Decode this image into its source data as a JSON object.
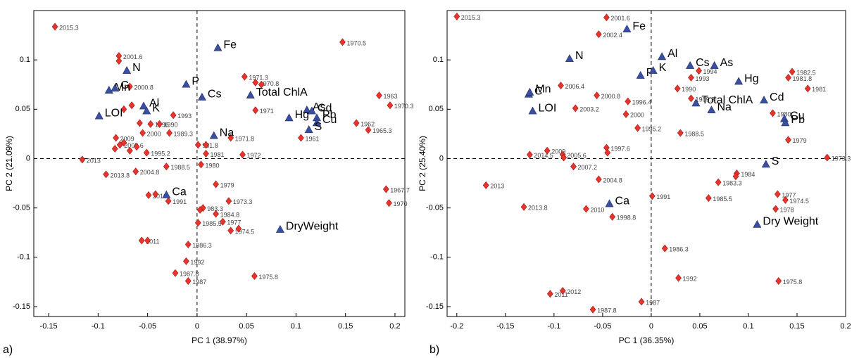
{
  "chart_data": [
    {
      "type": "scatter",
      "panel": "a)",
      "x_label": "PC 1 (38.97%)",
      "y_label": "PC 2 (21.09%)",
      "xlim": [
        -0.165,
        0.21
      ],
      "ylim": [
        -0.16,
        0.15
      ],
      "xticks": [
        -0.15,
        -0.1,
        -0.05,
        0,
        0.05,
        0.1,
        0.15,
        0.2
      ],
      "yticks": [
        -0.15,
        -0.1,
        -0.05,
        0,
        0.05,
        0.1
      ],
      "series": [
        {
          "marker": "diamond",
          "color": "#e8342c",
          "x": [
            -0.1436,
            -0.079,
            -0.079,
            -0.068,
            -0.074,
            -0.066,
            -0.058,
            -0.047,
            -0.038,
            -0.055,
            -0.028,
            -0.024,
            -0.082,
            -0.078,
            -0.074,
            -0.083,
            -0.061,
            -0.068,
            -0.051,
            -0.116,
            -0.092,
            -0.062,
            -0.031,
            -0.049,
            -0.042,
            -0.029,
            -0.056,
            -0.05,
            -0.009,
            -0.011,
            -0.022,
            -0.009,
            0.001,
            0.009,
            0.009,
            0.004,
            0.034,
            0.046,
            0.048,
            0.059,
            0.065,
            0.059,
            0.019,
            0.032,
            0.006,
            0.003,
            0.019,
            0.026,
            0.001,
            0.034,
            0.042,
            0.058,
            0.147,
            0.184,
            0.195,
            0.161,
            0.173,
            0.105,
            0.191,
            0.194
          ],
          "values": [
            0.1336,
            0.104,
            0.099,
            0.073,
            0.05,
            0.054,
            0.036,
            0.035,
            0.035,
            0.026,
            0.026,
            0.044,
            0.021,
            0.014,
            0.016,
            0.01,
            0.012,
            0.008,
            0.006,
            -0.001,
            -0.016,
            -0.013,
            -0.008,
            -0.037,
            -0.036,
            -0.043,
            -0.083,
            -0.083,
            -0.087,
            -0.104,
            -0.116,
            -0.124,
            0.014,
            0.014,
            0.005,
            -0.006,
            0.021,
            0.004,
            0.083,
            0.077,
            0.075,
            0.049,
            -0.026,
            -0.043,
            -0.05,
            -0.052,
            -0.056,
            -0.064,
            -0.065,
            -0.073,
            -0.071,
            -0.119,
            0.118,
            0.064,
            0.054,
            0.036,
            0.029,
            0.021,
            -0.031,
            -0.045
          ],
          "labels": [
            "2015.3",
            "2001.6",
            null,
            "2000.8",
            null,
            null,
            null,
            "1996",
            "1990",
            "2000",
            "1989.3",
            "1993",
            "2009",
            "2005.6",
            null,
            null,
            null,
            null,
            "1995.2",
            "2013",
            "2013.8",
            "2004.8",
            "1988.5",
            "2010",
            null,
            "1991",
            "2011",
            null,
            "1986.3",
            "1992",
            "1987.8",
            "1987",
            "981.8",
            null,
            "1981",
            "1980",
            "1971.8",
            "1972",
            "1971.3",
            "1970.8",
            null,
            "1971",
            "1979",
            "1973.3",
            "983.3",
            null,
            "1984.8",
            "1977",
            "1985.5",
            "1974.5",
            null,
            "1975.8",
            "1970.5",
            "1963",
            "1970.3",
            "1962",
            "1965.3",
            "1961",
            "1967.7",
            "1970"
          ]
        },
        {
          "marker": "triangle",
          "color": "#3b4fa0",
          "x": [
            0.021,
            -0.071,
            -0.089,
            -0.083,
            -0.011,
            0.005,
            0.054,
            -0.054,
            -0.051,
            -0.099,
            0.017,
            0.111,
            0.116,
            0.121,
            0.093,
            0.121,
            0.113,
            -0.031,
            0.084
          ],
          "values": [
            0.112,
            0.089,
            0.069,
            0.071,
            0.075,
            0.062,
            0.064,
            0.053,
            0.048,
            0.043,
            0.023,
            0.049,
            0.048,
            0.041,
            0.041,
            0.036,
            0.029,
            -0.037,
            -0.072
          ],
          "labels": [
            "Fe",
            "N",
            "Mn",
            "C",
            "P",
            "Cs",
            "Total ChlA",
            "Al",
            "K",
            "LOI",
            "Na",
            "As",
            "Cd",
            "Pb",
            "Hg",
            "Cu",
            "S",
            "Ca",
            "DryWeight"
          ]
        }
      ]
    },
    {
      "type": "scatter",
      "panel": "b)",
      "x_label": "PC 1 (36.35%)",
      "y_label": "PC 2 (25.40%)",
      "xlim": [
        -0.21,
        0.2
      ],
      "ylim": [
        -0.16,
        0.15
      ],
      "xticks": [
        -0.2,
        -0.15,
        -0.1,
        -0.05,
        0,
        0.05,
        0.1,
        0.15,
        0.2
      ],
      "yticks": [
        -0.15,
        -0.1,
        -0.05,
        0,
        0.05,
        0.1
      ],
      "series": [
        {
          "marker": "diamond",
          "color": "#e8342c",
          "x": [
            -0.2,
            -0.046,
            -0.054,
            -0.093,
            -0.056,
            -0.024,
            -0.078,
            -0.026,
            -0.014,
            0.027,
            0.041,
            0.041,
            0.049,
            0.03,
            0.145,
            0.141,
            0.161,
            0.125,
            0.141,
            0.181,
            -0.107,
            -0.125,
            -0.091,
            -0.09,
            -0.046,
            -0.045,
            -0.08,
            -0.054,
            -0.17,
            -0.131,
            -0.04,
            -0.067,
            0.001,
            0.088,
            0.087,
            0.069,
            0.059,
            0.13,
            0.138,
            0.128,
            0.014,
            0.028,
            0.131,
            -0.104,
            -0.091,
            -0.01,
            -0.06
          ],
          "values": [
            0.144,
            0.143,
            0.126,
            0.074,
            0.064,
            0.058,
            0.051,
            0.045,
            0.031,
            0.071,
            0.061,
            0.082,
            0.089,
            0.026,
            0.088,
            0.082,
            0.071,
            0.046,
            0.019,
            0.001,
            0.008,
            0.004,
            0.004,
            0.001,
            0.011,
            0.006,
            -0.008,
            -0.021,
            -0.027,
            -0.049,
            -0.059,
            -0.051,
            -0.038,
            -0.015,
            -0.018,
            -0.024,
            -0.04,
            -0.036,
            -0.042,
            -0.051,
            -0.091,
            -0.121,
            -0.124,
            -0.137,
            -0.134,
            -0.145,
            -0.153
          ],
          "labels": [
            "2015.3",
            "2001.6",
            "2002.4",
            "2006.4",
            "2000.8",
            "1996.4",
            "2003.2",
            "2000",
            "1995.2",
            "1990",
            "1989.3",
            "1993",
            "1994",
            "1988.5",
            "1982.5",
            "1981.8",
            "1981",
            "1980",
            "1979",
            "1973.3",
            "2009",
            "2014.5",
            "2005.6",
            null,
            "1997.6",
            null,
            "2007.2",
            "2004.8",
            "2013",
            "2013.8",
            "1998.8",
            "2010",
            "1991",
            "1984",
            null,
            "1983.3",
            "1985.5",
            "1977",
            "1974.5",
            "1978",
            "1986.3",
            "1992",
            "1975.8",
            "2011",
            "2012",
            "1987",
            "1987.8"
          ]
        },
        {
          "marker": "triangle",
          "color": "#3b4fa0",
          "x": [
            -0.025,
            -0.084,
            0.011,
            0.04,
            0.065,
            -0.011,
            0.002,
            0.09,
            -0.126,
            -0.125,
            0.046,
            0.116,
            -0.122,
            0.062,
            0.137,
            0.138,
            0.118,
            -0.043,
            0.109
          ],
          "values": [
            0.131,
            0.101,
            0.103,
            0.094,
            0.094,
            0.084,
            0.089,
            0.078,
            0.065,
            0.067,
            0.056,
            0.059,
            0.048,
            0.049,
            0.04,
            0.036,
            -0.006,
            -0.046,
            -0.067
          ],
          "labels": [
            "Fe",
            "N",
            "Al",
            "Cs",
            "As",
            "P",
            "K",
            "Hg",
            "C",
            "Mn",
            "Total ChlA",
            "Cd",
            "LOI",
            "Na",
            "Cu",
            "Pb",
            "S",
            "Ca",
            "Dry Weight"
          ]
        }
      ]
    }
  ]
}
